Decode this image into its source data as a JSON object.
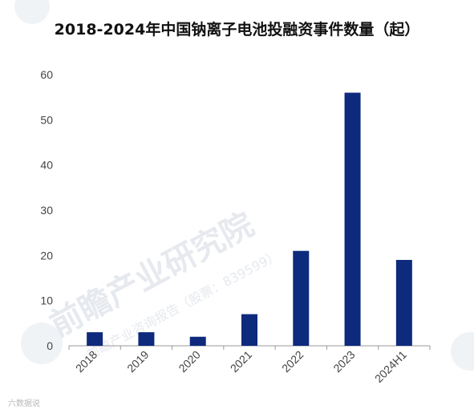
{
  "title": "2018-2024年中国钠离子电池投融资事件数量（起）",
  "watermark": {
    "main": "前瞻产业研究院",
    "sub": "前瞻产业咨询报告（股票：839599）",
    "corner": "六数据说"
  },
  "colors": {
    "bar": "#0d2a7c",
    "axis": "#9a9a9a"
  },
  "chart_data": {
    "type": "bar",
    "title": "2018-2024年中国钠离子电池投融资事件数量（起）",
    "xlabel": "",
    "ylabel": "",
    "categories": [
      "2018",
      "2019",
      "2020",
      "2021",
      "2022",
      "2023",
      "2024H1"
    ],
    "values": [
      3,
      3,
      2,
      7,
      21,
      56,
      19
    ],
    "ylim": [
      0,
      60
    ],
    "yticks": [
      0,
      10,
      20,
      30,
      40,
      50,
      60
    ],
    "grid": false,
    "legend": "none"
  }
}
